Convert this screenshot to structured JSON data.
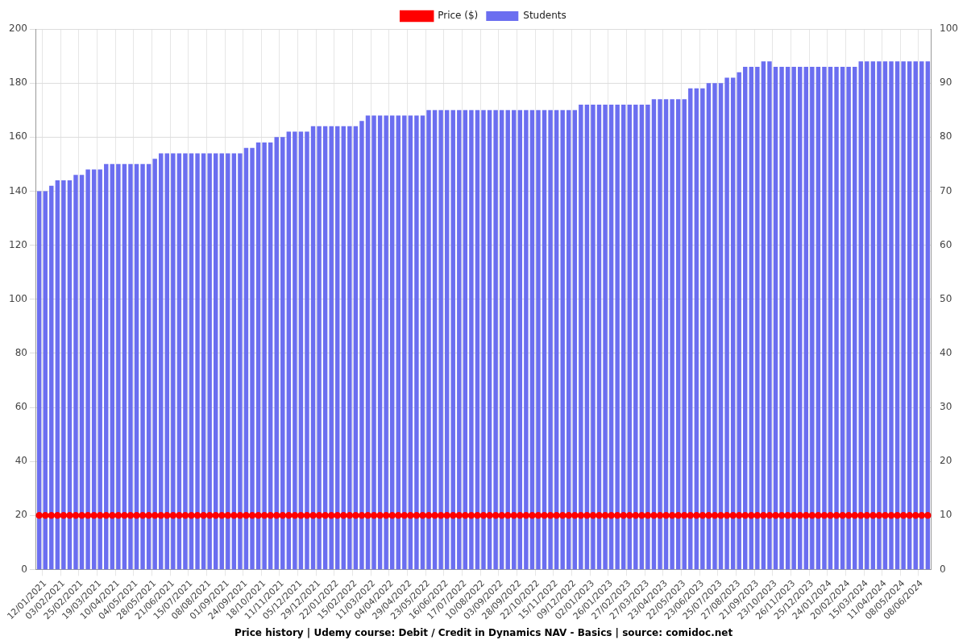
{
  "chart_data": {
    "type": "bar",
    "title": "Price history | Udemy course: Debit / Credit in Dynamics NAV - Basics | source: comidoc.net",
    "categories": [
      null,
      "12/01/2021",
      null,
      null,
      "03/02/2021",
      null,
      null,
      "25/02/2021",
      null,
      null,
      "19/03/2021",
      null,
      null,
      "10/04/2021",
      null,
      null,
      "04/05/2021",
      null,
      null,
      "28/05/2021",
      null,
      null,
      "21/06/2021",
      null,
      null,
      "15/07/2021",
      null,
      null,
      "08/08/2021",
      null,
      null,
      "01/09/2021",
      null,
      null,
      "24/09/2021",
      null,
      null,
      "18/10/2021",
      null,
      null,
      "11/11/2021",
      null,
      null,
      "05/12/2021",
      null,
      null,
      "29/12/2021",
      null,
      null,
      "22/01/2022",
      null,
      null,
      "15/02/2022",
      null,
      null,
      "11/03/2022",
      null,
      null,
      "04/04/2022",
      null,
      null,
      "29/04/2022",
      null,
      null,
      "23/05/2022",
      null,
      null,
      "16/06/2022",
      null,
      null,
      "17/07/2022",
      null,
      null,
      "10/08/2022",
      null,
      null,
      "03/09/2022",
      null,
      null,
      "28/09/2022",
      null,
      null,
      "22/10/2022",
      null,
      null,
      "15/11/2022",
      null,
      null,
      "09/12/2022",
      null,
      null,
      "02/01/2023",
      null,
      null,
      "26/01/2023",
      null,
      null,
      "27/02/2023",
      null,
      null,
      "27/03/2023",
      null,
      null,
      "23/04/2023",
      null,
      null,
      "22/05/2023",
      null,
      null,
      "23/06/2023",
      null,
      null,
      "25/07/2023",
      null,
      null,
      "27/08/2023",
      null,
      null,
      "21/09/2023",
      null,
      null,
      "23/10/2023",
      null,
      null,
      "26/11/2023",
      null,
      null,
      "25/12/2023",
      null,
      null,
      "24/01/2024",
      null,
      null,
      "20/02/2024",
      null,
      null,
      "15/03/2024",
      null,
      null,
      "11/04/2024",
      null,
      null,
      "08/05/2024",
      null,
      null,
      "08/06/2024",
      null
    ],
    "series": [
      {
        "name": "Price ($)",
        "type": "line",
        "color": "#ff0000",
        "marker": "o",
        "axis": "y",
        "values": [
          20,
          20,
          20,
          20,
          20,
          20,
          20,
          20,
          20,
          20,
          20,
          20,
          20,
          20,
          20,
          20,
          20,
          20,
          20,
          20,
          20,
          20,
          20,
          20,
          20,
          20,
          20,
          20,
          20,
          20,
          20,
          20,
          20,
          20,
          20,
          20,
          20,
          20,
          20,
          20,
          20,
          20,
          20,
          20,
          20,
          20,
          20,
          20,
          20,
          20,
          20,
          20,
          20,
          20,
          20,
          20,
          20,
          20,
          20,
          20,
          20,
          20,
          20,
          20,
          20,
          20,
          20,
          20,
          20,
          20,
          20,
          20,
          20,
          20,
          20,
          20,
          20,
          20,
          20,
          20,
          20,
          20,
          20,
          20,
          20,
          20,
          20,
          20,
          20,
          20,
          20,
          20,
          20,
          20,
          20,
          20,
          20,
          20,
          20,
          20,
          20,
          20,
          20,
          20,
          20,
          20,
          20,
          20,
          20,
          20,
          20,
          20,
          20,
          20,
          20,
          20,
          20,
          20,
          20,
          20,
          20,
          20,
          20,
          20,
          20,
          20,
          20,
          20,
          20,
          20,
          20,
          20,
          20,
          20,
          20,
          20,
          20,
          20,
          20,
          20,
          20,
          20,
          20,
          20,
          20,
          20,
          20
        ]
      },
      {
        "name": "Students",
        "type": "bar",
        "color": "#6b6ef0",
        "axis": "y2",
        "values": [
          70,
          70,
          71,
          72,
          72,
          72,
          73,
          73,
          74,
          74,
          74,
          75,
          75,
          75,
          75,
          75,
          75,
          75,
          75,
          76,
          77,
          77,
          77,
          77,
          77,
          77,
          77,
          77,
          77,
          77,
          77,
          77,
          77,
          77,
          78,
          78,
          79,
          79,
          79,
          80,
          80,
          81,
          81,
          81,
          81,
          82,
          82,
          82,
          82,
          82,
          82,
          82,
          82,
          83,
          84,
          84,
          84,
          84,
          84,
          84,
          84,
          84,
          84,
          84,
          85,
          85,
          85,
          85,
          85,
          85,
          85,
          85,
          85,
          85,
          85,
          85,
          85,
          85,
          85,
          85,
          85,
          85,
          85,
          85,
          85,
          85,
          85,
          85,
          85,
          86,
          86,
          86,
          86,
          86,
          86,
          86,
          86,
          86,
          86,
          86,
          86,
          87,
          87,
          87,
          87,
          87,
          87,
          89,
          89,
          89,
          90,
          90,
          90,
          91,
          91,
          92,
          93,
          93,
          93,
          94,
          94,
          93,
          93,
          93,
          93,
          93,
          93,
          93,
          93,
          93,
          93,
          93,
          93,
          93,
          93,
          94,
          94,
          94,
          94,
          94,
          94,
          94,
          94,
          94,
          94,
          94,
          94
        ]
      }
    ],
    "ylim": [
      0,
      200
    ],
    "yticks": [
      0,
      20,
      40,
      60,
      80,
      100,
      120,
      140,
      160,
      180,
      200
    ],
    "y2lim": [
      0,
      100
    ],
    "y2ticks": [
      0,
      10,
      20,
      30,
      40,
      50,
      60,
      70,
      80,
      90,
      100
    ],
    "grid": true,
    "legend": "top"
  }
}
